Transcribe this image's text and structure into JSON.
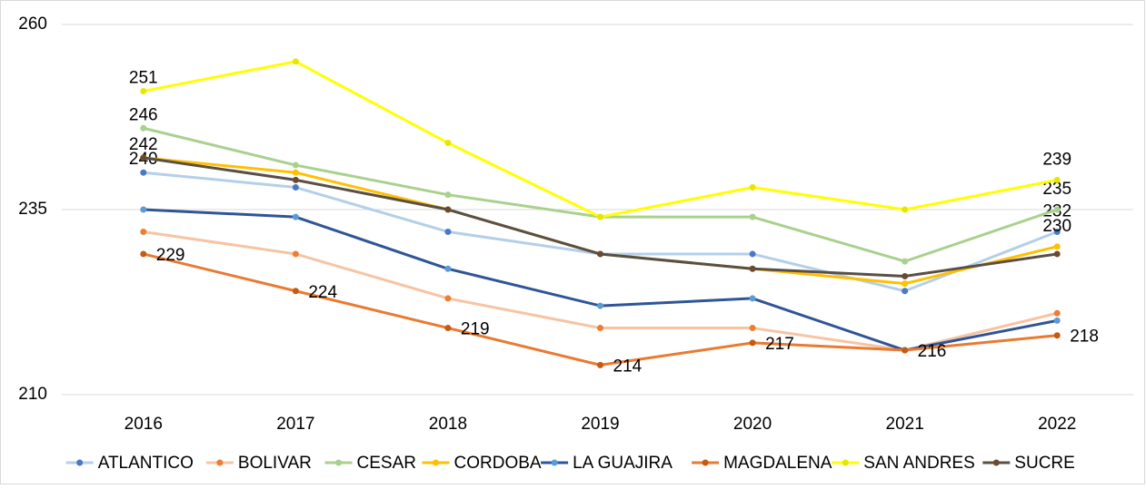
{
  "chart_data": {
    "type": "line",
    "categories": [
      "2016",
      "2017",
      "2018",
      "2019",
      "2020",
      "2021",
      "2022"
    ],
    "ylim": [
      210,
      260
    ],
    "yticks": [
      210,
      235,
      260
    ],
    "grid": true,
    "legend": "bottom",
    "series": [
      {
        "name": "ATLANTICO",
        "color": "#b4cfea",
        "marker_color": "#4a78c8",
        "data_labels": "ends",
        "values": [
          240,
          238,
          232,
          229,
          229,
          224,
          232
        ]
      },
      {
        "name": "BOLIVAR",
        "color": "#f6c4a3",
        "marker_color": "#ed7d31",
        "data_labels": "none",
        "values": [
          232,
          229,
          223,
          219,
          219,
          216,
          221
        ]
      },
      {
        "name": "CESAR",
        "color": "#a9d18e",
        "marker_color": "#a9d18e",
        "data_labels": "ends",
        "values": [
          246,
          241,
          237,
          234,
          234,
          228,
          235
        ]
      },
      {
        "name": "CORDOBA",
        "color": "#ffc000",
        "marker_color": "#ffc000",
        "data_labels": "ends",
        "values": [
          242,
          240,
          235,
          229,
          227,
          225,
          230
        ]
      },
      {
        "name": "LA GUAJIRA",
        "color": "#2f5597",
        "marker_color": "#5b9bd5",
        "data_labels": "none",
        "values": [
          235,
          234,
          227,
          222,
          223,
          216,
          220
        ]
      },
      {
        "name": "MAGDALENA",
        "color": "#e97a32",
        "marker_color": "#c55a11",
        "data_labels": "all",
        "values": [
          229,
          224,
          219,
          214,
          217,
          216,
          218
        ]
      },
      {
        "name": "SAN ANDRES",
        "color": "#ffff00",
        "marker_color": "#e6e600",
        "data_labels": "ends",
        "values": [
          251,
          255,
          244,
          234,
          238,
          235,
          239
        ]
      },
      {
        "name": "SUCRE",
        "color": "#5a4f45",
        "marker_color": "#6b4a32",
        "data_labels": "none",
        "values": [
          242,
          239,
          235,
          229,
          227,
          226,
          229
        ]
      }
    ]
  }
}
